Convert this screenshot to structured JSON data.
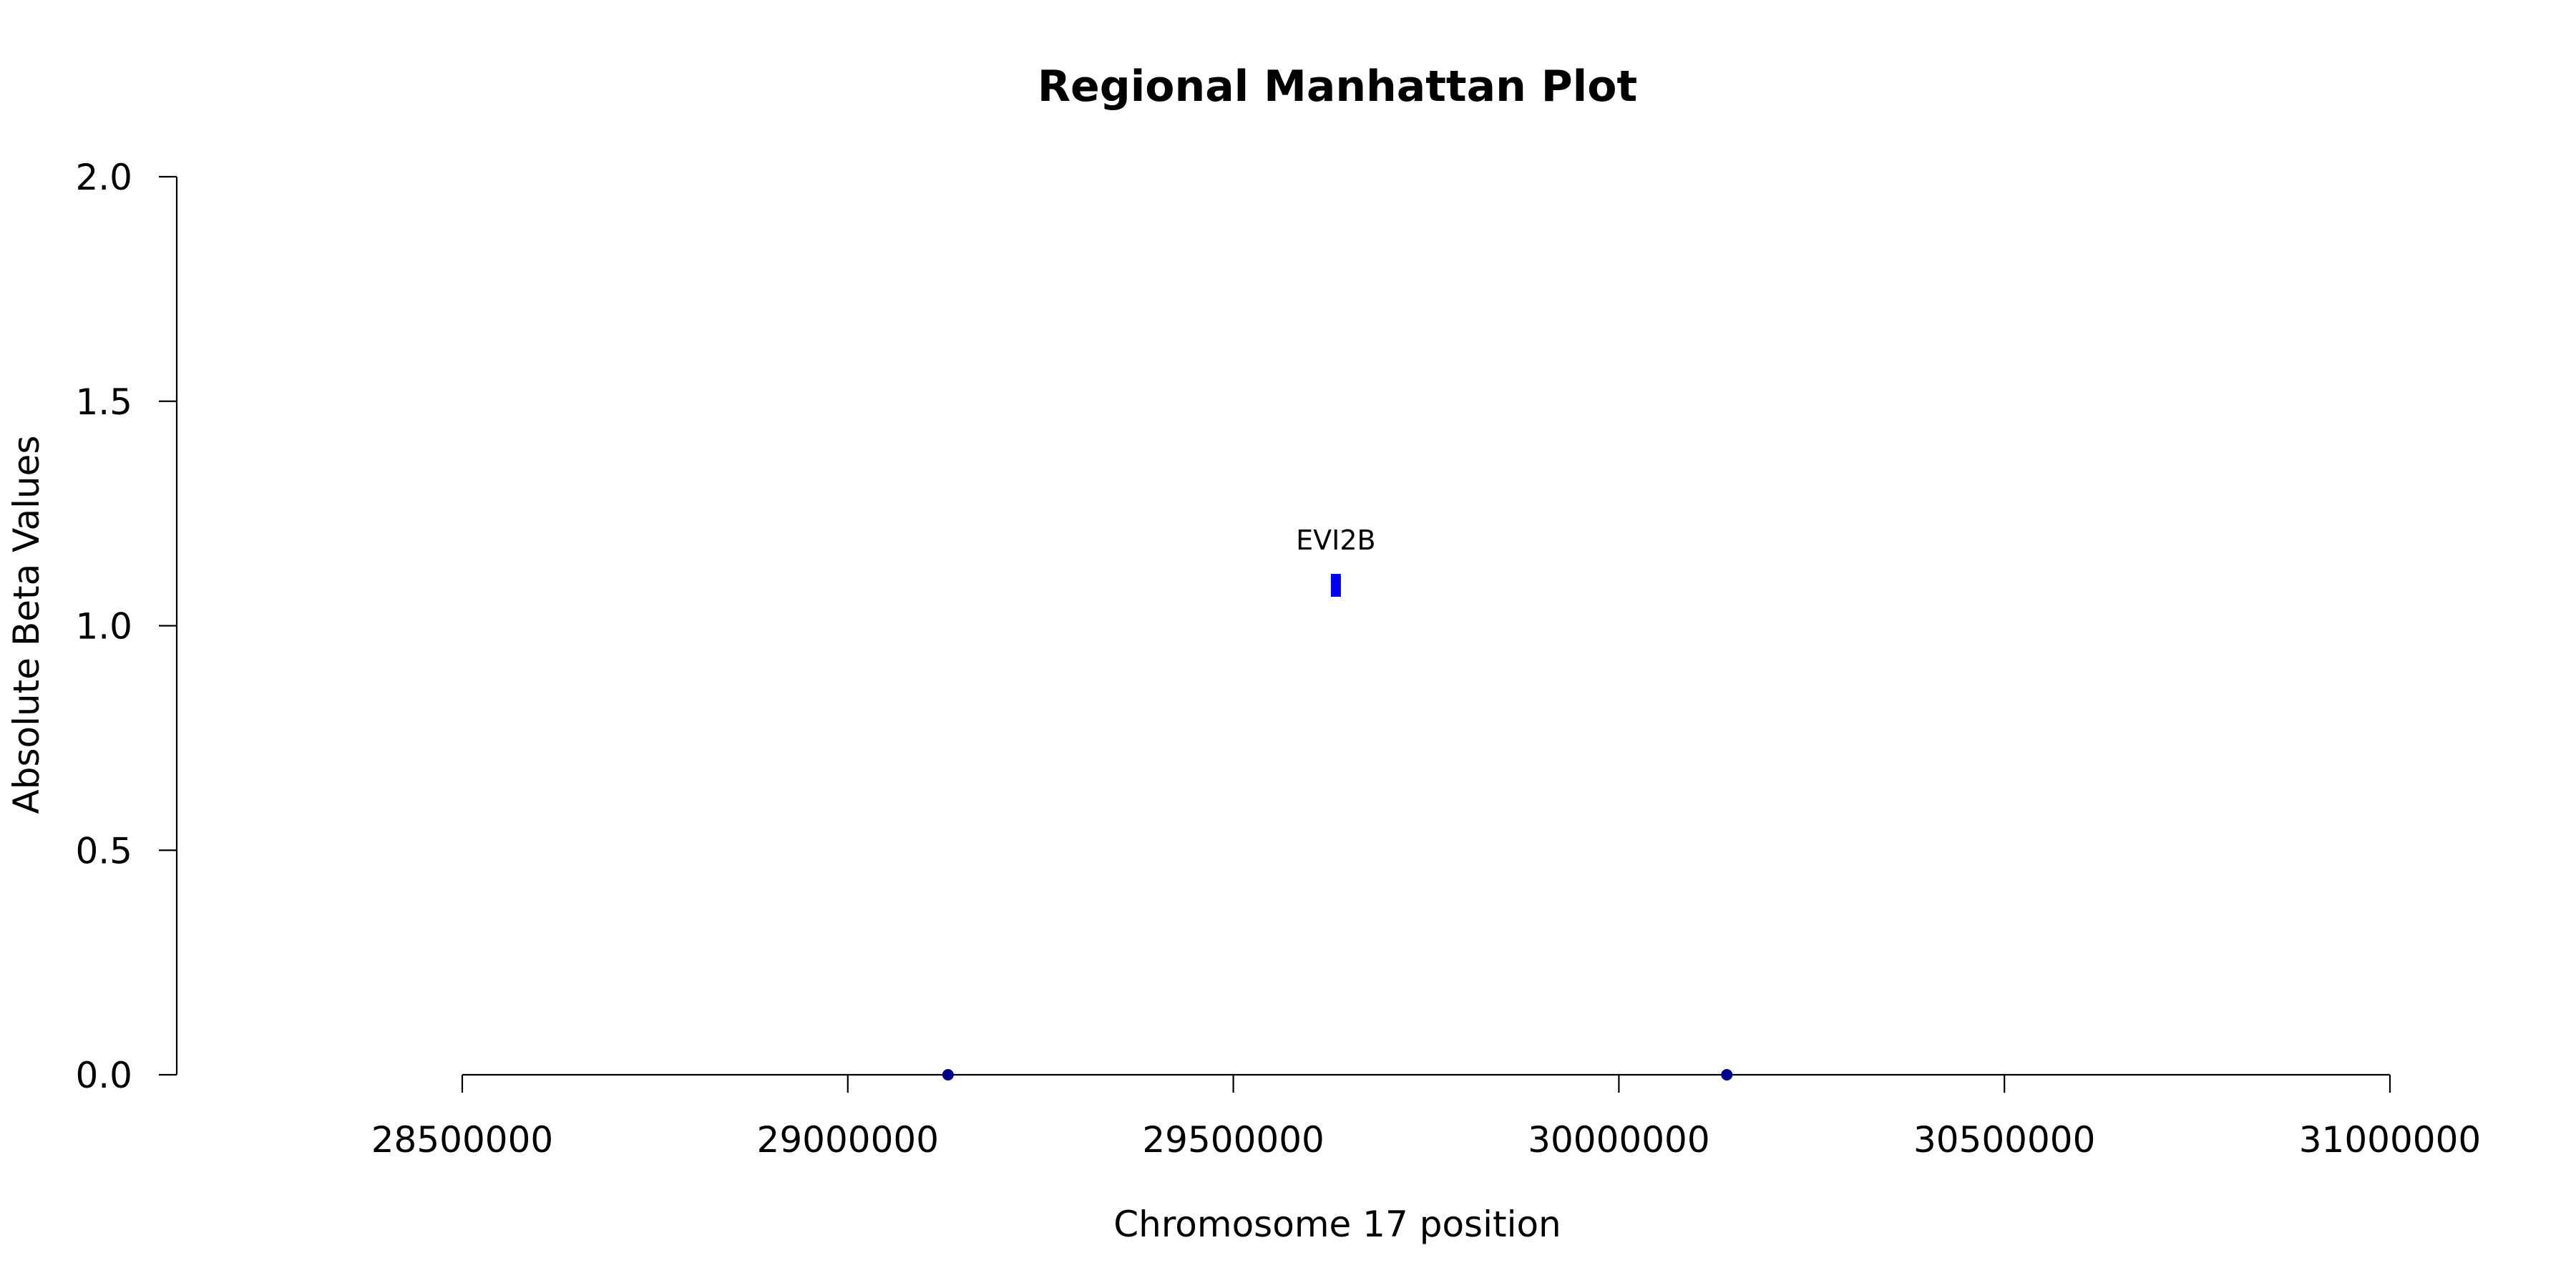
{
  "chart_data": {
    "type": "scatter",
    "title": "Regional Manhattan Plot",
    "xlabel": "Chromosome 17 position",
    "ylabel": "Absolute Beta Values",
    "xlim": [
      28500000,
      31000000
    ],
    "ylim": [
      0,
      2
    ],
    "x_ticks": [
      "28500000",
      "29000000",
      "29500000",
      "30000000",
      "30500000",
      "31000000"
    ],
    "y_ticks": [
      "0.0",
      "0.5",
      "1.0",
      "1.5",
      "2.0"
    ],
    "grid": false,
    "legend": "none",
    "colors": {
      "highlight": "#0000ee",
      "point": "#00008b",
      "axis": "#000000"
    },
    "points": [
      {
        "x": 29130000,
        "y": 0.0,
        "style": "point"
      },
      {
        "x": 29633000,
        "y": 1.09,
        "style": "highlight",
        "label": "EVI2B"
      },
      {
        "x": 30140000,
        "y": 0.0,
        "style": "point"
      }
    ]
  }
}
